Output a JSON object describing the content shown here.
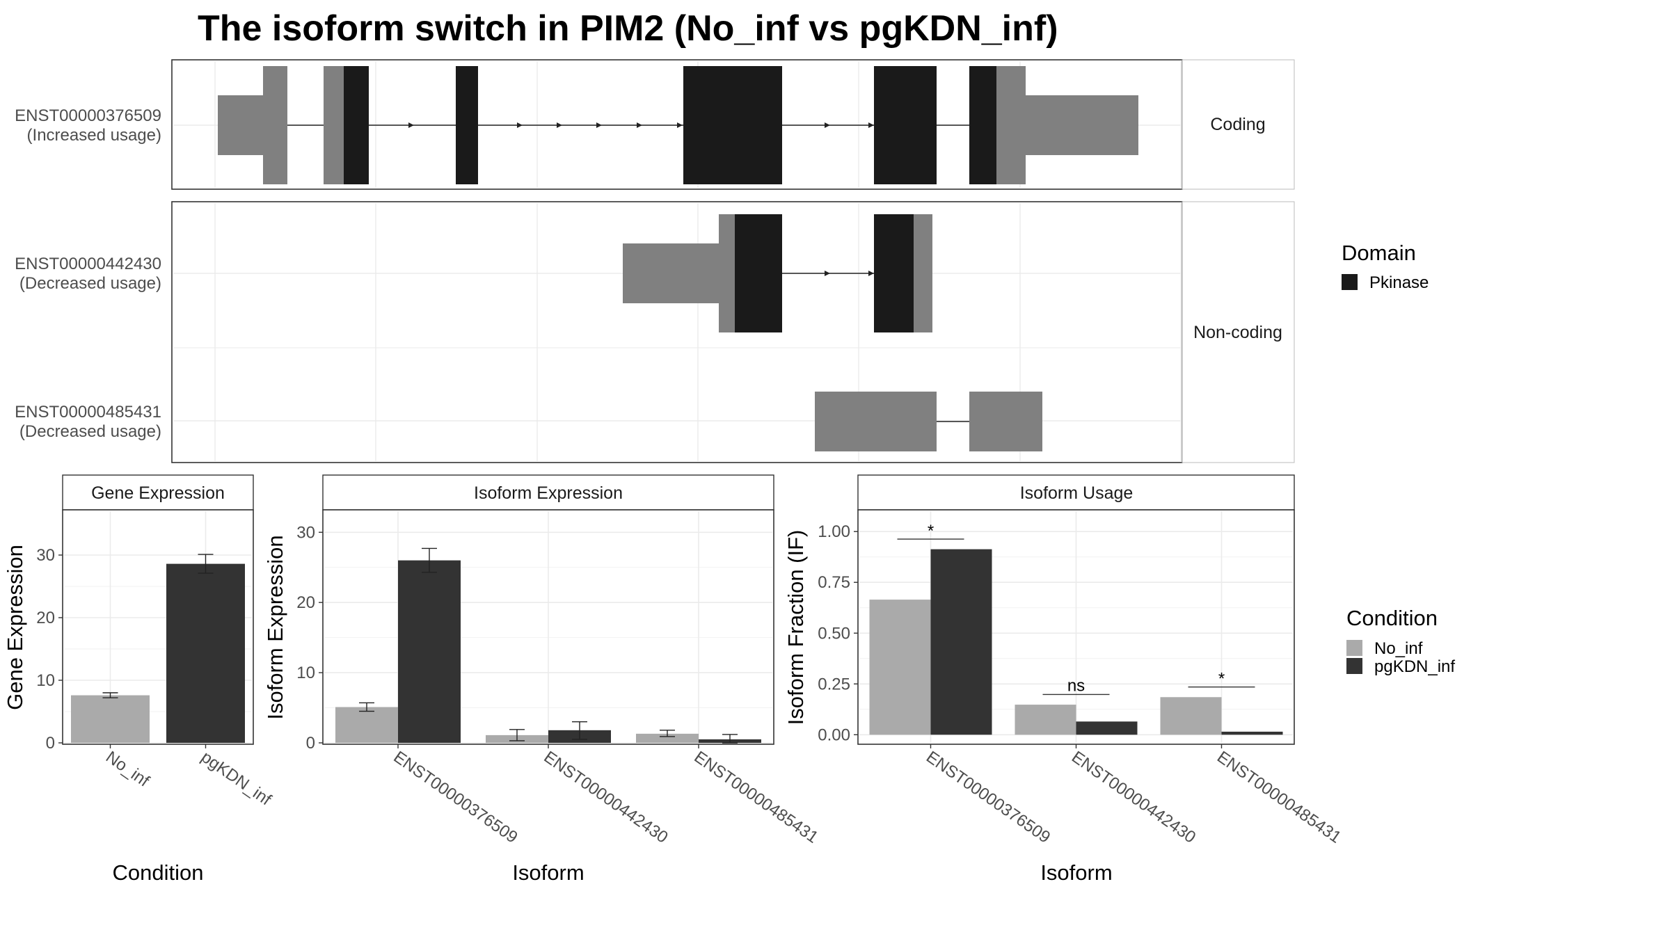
{
  "title": "The isoform switch in PIM2 (No_inf vs pgKDN_inf)",
  "colors": {
    "domain": "#1a1a1a",
    "utr": "#808080",
    "no_inf": "#aaaaaa",
    "pgkdn_inf": "#333333",
    "grid": "#ebebeb",
    "frame": "#333333"
  },
  "structure": {
    "facets": [
      "Coding",
      "Non-coding"
    ],
    "transcripts": [
      {
        "id": "ENST00000376509",
        "usage": "(Increased usage)",
        "facet": "Coding"
      },
      {
        "id": "ENST00000442430",
        "usage": "(Decreased usage)",
        "facet": "Non-coding"
      },
      {
        "id": "ENST00000485431",
        "usage": "(Decreased usage)",
        "facet": "Non-coding"
      }
    ],
    "legend": {
      "title": "Domain",
      "items": [
        {
          "label": "Pkinase",
          "color": "#1a1a1a"
        }
      ]
    }
  },
  "chart_data": [
    {
      "type": "bar",
      "strip": "Gene Expression",
      "xlabel": "Condition",
      "ylabel": "Gene Expression",
      "categories": [
        "No_inf",
        "pgKDN_inf"
      ],
      "values": [
        7.6,
        28.6
      ],
      "errors": [
        [
          7.2,
          8.0
        ],
        [
          27.1,
          30.1
        ]
      ],
      "colors": [
        "#aaaaaa",
        "#333333"
      ],
      "ylim": [
        0,
        37
      ],
      "yticks": [
        0,
        10,
        20,
        30
      ]
    },
    {
      "type": "bar",
      "strip": "Isoform Expression",
      "xlabel": "Isoform",
      "ylabel": "Isoform Expression",
      "categories": [
        "ENST00000376509",
        "ENST00000442430",
        "ENST00000485431"
      ],
      "series": [
        {
          "name": "No_inf",
          "values": [
            5.1,
            1.1,
            1.3
          ],
          "errors": [
            [
              4.5,
              5.7
            ],
            [
              0.3,
              1.9
            ],
            [
              0.9,
              1.8
            ]
          ]
        },
        {
          "name": "pgKDN_inf",
          "values": [
            26.0,
            1.8,
            0.5
          ],
          "errors": [
            [
              24.3,
              27.7
            ],
            [
              0.5,
              3.0
            ],
            [
              0.0,
              1.2
            ]
          ]
        }
      ],
      "ylim": [
        0,
        33
      ],
      "yticks": [
        0,
        10,
        20,
        30
      ]
    },
    {
      "type": "bar",
      "strip": "Isoform Usage",
      "xlabel": "Isoform",
      "ylabel": "Isoform Fraction (IF)",
      "categories": [
        "ENST00000376509",
        "ENST00000442430",
        "ENST00000485431"
      ],
      "series": [
        {
          "name": "No_inf",
          "values": [
            0.665,
            0.148,
            0.185
          ]
        },
        {
          "name": "pgKDN_inf",
          "values": [
            0.913,
            0.065,
            0.015
          ]
        }
      ],
      "significance": [
        "*",
        "ns",
        "*"
      ],
      "ylim": [
        -0.04,
        1.1
      ],
      "yticks": [
        0.0,
        0.25,
        0.5,
        0.75,
        1.0
      ],
      "ytick_labels": [
        "0.00",
        "0.25",
        "0.50",
        "0.75",
        "1.00"
      ]
    }
  ],
  "condition_legend": {
    "title": "Condition",
    "items": [
      "No_inf",
      "pgKDN_inf"
    ]
  }
}
